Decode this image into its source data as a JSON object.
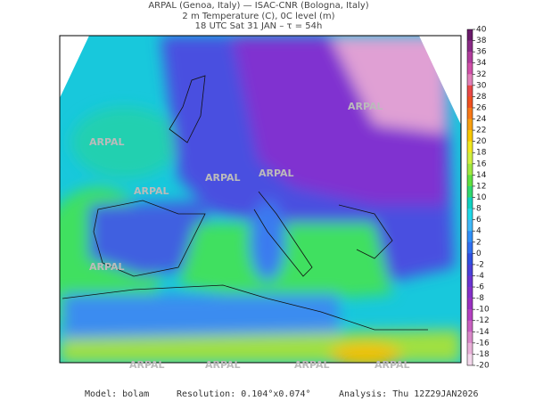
{
  "header": {
    "line1": "ARPAL (Genoa, Italy)  —  ISAC-CNR (Bologna, Italy)",
    "line2": "2 m Temperature (C), 0C level (m)",
    "line3": "18 UTC Sat 31 JAN  –  τ = 54h"
  },
  "watermark": "ARPAL",
  "colorbar": {
    "ticks": [
      40,
      38,
      36,
      34,
      32,
      30,
      28,
      26,
      24,
      22,
      20,
      18,
      16,
      14,
      12,
      10,
      8,
      6,
      4,
      2,
      0,
      -2,
      -4,
      -6,
      -8,
      -10,
      -12,
      -14,
      -16,
      -18,
      -20
    ],
    "colors": [
      "#6a1a6a",
      "#8a2a86",
      "#b03c9c",
      "#d050a8",
      "#e080b8",
      "#e84848",
      "#f05020",
      "#f87818",
      "#f8a010",
      "#f8c800",
      "#f0e820",
      "#d0f040",
      "#a0e840",
      "#60e040",
      "#30d870",
      "#10d0c0",
      "#20d8e8",
      "#40b8f8",
      "#3090f8",
      "#3070f0",
      "#3050e0",
      "#4a40d8",
      "#6a34d0",
      "#8430c8",
      "#9a30c0",
      "#b440c0",
      "#c860c0",
      "#d888c8",
      "#e8b0d8",
      "#f4d8ec"
    ]
  },
  "footer": {
    "model": "Model: bolam",
    "resolution": "Resolution: 0.104°x0.074°",
    "analysis": "Analysis: Thu 12Z29JAN2026"
  }
}
